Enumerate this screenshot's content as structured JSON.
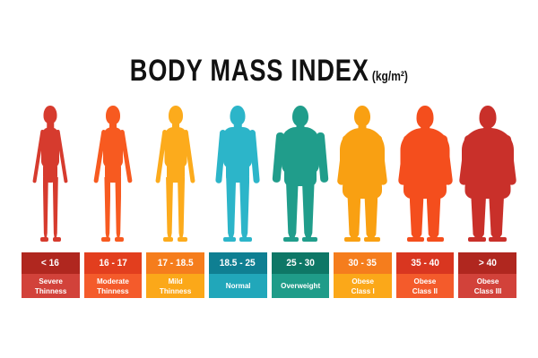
{
  "title": {
    "main": "BODY MASS INDEX",
    "unit": "(kg/m²)"
  },
  "title_color": "#111111",
  "categories": [
    {
      "range": "< 16",
      "label": "Severe\nThinness",
      "figure_color": "#d63b2e",
      "top_color": "#b0271f",
      "bottom_color": "#d2423a"
    },
    {
      "range": "16 - 17",
      "label": "Moderate\nThinness",
      "figure_color": "#f75a20",
      "top_color": "#e23e1e",
      "bottom_color": "#f45b2b"
    },
    {
      "range": "17 - 18.5",
      "label": "Mild\nThinness",
      "figure_color": "#fcab1c",
      "top_color": "#f57d1d",
      "bottom_color": "#fba819"
    },
    {
      "range": "18.5 - 25",
      "label": "Normal",
      "figure_color": "#2cb5c9",
      "top_color": "#0f7f92",
      "bottom_color": "#21a7ba"
    },
    {
      "range": "25 - 30",
      "label": "Overweight",
      "figure_color": "#209d8b",
      "top_color": "#0e7766",
      "bottom_color": "#1f9c89"
    },
    {
      "range": "30 - 35",
      "label": "Obese\nClass I",
      "figure_color": "#f9a012",
      "top_color": "#f57d1d",
      "bottom_color": "#fba819"
    },
    {
      "range": "35 - 40",
      "label": "Obese\nClass II",
      "figure_color": "#f44e1d",
      "top_color": "#d93620",
      "bottom_color": "#f45b2b"
    },
    {
      "range": "> 40",
      "label": "Obese\nClass III",
      "figure_color": "#c9302a",
      "top_color": "#b0271f",
      "bottom_color": "#d2423a"
    }
  ]
}
